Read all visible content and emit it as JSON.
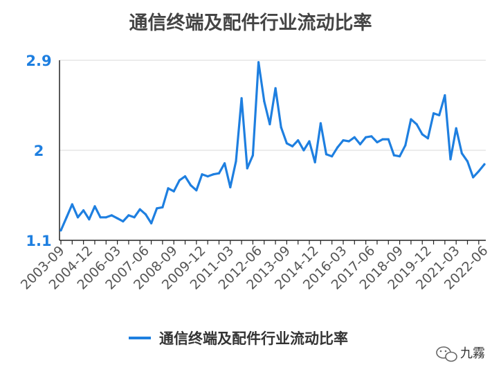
{
  "chart_data": {
    "type": "line",
    "title": "通信终端及配件行业流动比率",
    "xlabel": "",
    "ylabel": "",
    "ylim": [
      1.1,
      2.9
    ],
    "yticks": [
      "1.1",
      "2",
      "2.9"
    ],
    "grid": true,
    "legend_position": "bottom",
    "xtick_labels": [
      "2003-09",
      "2004-12",
      "2006-03",
      "2007-06",
      "2008-09",
      "2009-12",
      "2011-03",
      "2012-06",
      "2013-09",
      "2014-12",
      "2016-03",
      "2017-06",
      "2018-09",
      "2019-12",
      "2021-03",
      "2022-06"
    ],
    "series": [
      {
        "name": "通信终端及配件行业流动比率",
        "color": "#1e7fe0",
        "values": [
          1.2,
          1.33,
          1.46,
          1.33,
          1.4,
          1.31,
          1.44,
          1.33,
          1.33,
          1.35,
          1.32,
          1.29,
          1.35,
          1.33,
          1.41,
          1.36,
          1.27,
          1.42,
          1.43,
          1.62,
          1.59,
          1.7,
          1.74,
          1.65,
          1.6,
          1.76,
          1.74,
          1.76,
          1.77,
          1.87,
          1.63,
          1.89,
          2.52,
          1.82,
          1.95,
          2.88,
          2.49,
          2.26,
          2.62,
          2.23,
          2.07,
          2.04,
          2.1,
          2.0,
          2.09,
          1.88,
          2.27,
          1.96,
          1.94,
          2.03,
          2.1,
          2.09,
          2.13,
          2.06,
          2.13,
          2.14,
          2.08,
          2.11,
          2.11,
          1.95,
          1.94,
          2.05,
          2.31,
          2.26,
          2.16,
          2.12,
          2.37,
          2.35,
          2.55,
          1.91,
          2.22,
          1.97,
          1.89,
          1.73,
          1.79,
          1.86
        ]
      }
    ]
  },
  "watermark": {
    "text": "九霧",
    "icon": "wechat-bubble-icon"
  }
}
